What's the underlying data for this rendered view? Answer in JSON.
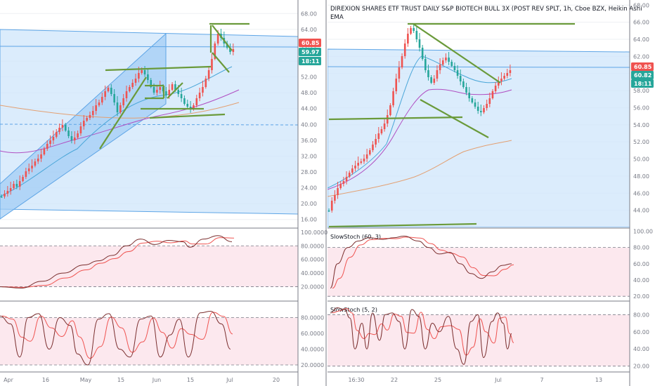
{
  "chart_data": [
    {
      "type": "candlestick",
      "title": "",
      "x_tick_labels": [
        "Apr",
        "16",
        "May",
        "15",
        "Jun",
        "15",
        "Jul",
        "20"
      ],
      "y_tick_labels": [
        "68.00",
        "64.00",
        "60.00",
        "56.00",
        "52.00",
        "48.00",
        "44.00",
        "40.00",
        "36.00",
        "32.00",
        "28.00",
        "24.00",
        "20.00",
        "16.00"
      ],
      "ylim": [
        14,
        70
      ],
      "price_badges": [
        {
          "value": "60.85",
          "color": "#ef5350"
        },
        {
          "value": "59.97",
          "color": "#26a69a"
        },
        {
          "value": "18:11",
          "color": "#26a69a"
        }
      ],
      "indicators": [
        {
          "y_tick_labels": [
            "100.0000",
            "80.0000",
            "60.0000",
            "40.0000",
            "20.0000"
          ],
          "ylim": [
            0,
            105
          ],
          "guides": [
            80,
            20
          ]
        },
        {
          "y_tick_labels": [
            "80.0000",
            "60.0000",
            "40.0000",
            "20.0000"
          ],
          "ylim": [
            12,
            100
          ],
          "guides": [
            80,
            20
          ]
        }
      ]
    },
    {
      "type": "candlestick",
      "title": "DIREXION SHARES ETF TRUST DAILY S&P BIOTECH BULL 3X (POST REV SPLT, 1h, Cboe BZX, Heikin Ashi",
      "subtitle": "EMA",
      "x_tick_labels": [
        "16:30",
        "22",
        "25",
        "Jul",
        "7",
        "13"
      ],
      "y_tick_labels": [
        "68.00",
        "66.00",
        "64.00",
        "62.00",
        "60.00",
        "58.00",
        "56.00",
        "54.00",
        "52.00",
        "50.00",
        "48.00",
        "46.00",
        "44.00"
      ],
      "ylim": [
        42,
        68.6
      ],
      "price_badges": [
        {
          "value": "60.85",
          "color": "#ef5350"
        },
        {
          "value": "60.82",
          "color": "#26a69a"
        },
        {
          "value": "18:11",
          "color": "#26a69a"
        }
      ],
      "indicators": [
        {
          "label": "SlowStoch (60, 3)",
          "y_tick_labels": [
            "100.00",
            "80.00",
            "60.00",
            "40.00",
            "20.00"
          ],
          "ylim": [
            15,
            103
          ],
          "guides": [
            80,
            20
          ]
        },
        {
          "label": "SlowStoch (5, 2)",
          "y_tick_labels": [
            "80.00",
            "60.00",
            "40.00",
            "20.00"
          ],
          "ylim": [
            14,
            95
          ],
          "guides": [
            80,
            20
          ]
        }
      ]
    }
  ],
  "colors": {
    "up": "#26a69a",
    "down": "#ef5350",
    "channel_fill": "#bbdefb",
    "trendline": "#6a9a3a",
    "indicator_fill": "#fce8ee"
  }
}
